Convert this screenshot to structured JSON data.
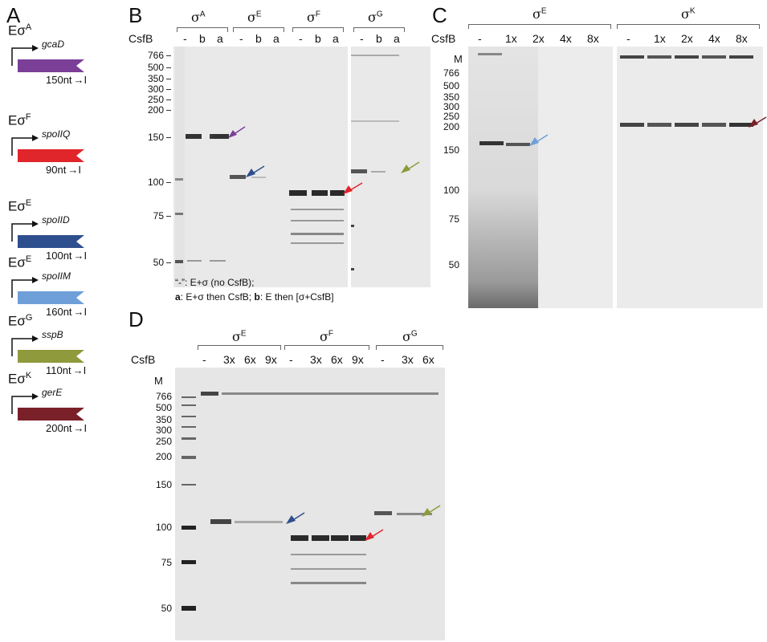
{
  "panels": {
    "A": "A",
    "B": "B",
    "C": "C",
    "D": "D"
  },
  "panelA": {
    "constructs": [
      {
        "enzyme": "Eσ",
        "sigma": "A",
        "gene": "gcaD",
        "length": "150nt",
        "color": "#7b3f98"
      },
      {
        "enzyme": "Eσ",
        "sigma": "F",
        "gene": "spoIIQ",
        "length": "90nt",
        "color": "#e0252b"
      },
      {
        "enzyme": "Eσ",
        "sigma": "E",
        "gene": "spoIID",
        "length": "100nt",
        "color": "#2e4f8d"
      },
      {
        "enzyme": "Eσ",
        "sigma": "E",
        "gene": "spoIIM",
        "length": "160nt",
        "color": "#6f9fd8"
      },
      {
        "enzyme": "Eσ",
        "sigma": "G",
        "gene": "sspB",
        "length": "110nt",
        "color": "#8e9a3b"
      },
      {
        "enzyme": "Eσ",
        "sigma": "K",
        "gene": "gerE",
        "length": "200nt",
        "color": "#7a2028"
      }
    ],
    "terminator": "→I"
  },
  "panelB": {
    "csfb_label": "CsfB",
    "groups": [
      {
        "sigma": "σ",
        "sup": "A",
        "lanes": [
          "-",
          "b",
          "a"
        ]
      },
      {
        "sigma": "σ",
        "sup": "E",
        "lanes": [
          "-",
          "b",
          "a"
        ]
      },
      {
        "sigma": "σ",
        "sup": "F",
        "lanes": [
          "-",
          "b",
          "a"
        ]
      },
      {
        "sigma": "σ",
        "sup": "G",
        "lanes": [
          "-",
          "b",
          "a"
        ]
      }
    ],
    "markers": [
      "766",
      "500",
      "350",
      "300",
      "250",
      "200",
      "150",
      "100",
      "75",
      "50"
    ],
    "note1": "“-”: E+σ (no CsfB);",
    "note2_a": "a",
    "note2_rest": ": E+σ then CsfB; ",
    "note2_b": "b",
    "note2_end": ": E then [σ+CsfB]"
  },
  "panelC": {
    "csfb_label": "CsfB",
    "groups": [
      {
        "sigma": "σ",
        "sup": "E",
        "lanes": [
          "-",
          "1x",
          "2x",
          "4x",
          "8x"
        ]
      },
      {
        "sigma": "σ",
        "sup": "K",
        "lanes": [
          "-",
          "1x",
          "2x",
          "4x",
          "8x"
        ]
      }
    ],
    "m_label": "M",
    "markers": [
      "766",
      "500",
      "350",
      "300",
      "250",
      "200",
      "150",
      "100",
      "75",
      "50"
    ]
  },
  "panelD": {
    "csfb_label": "CsfB",
    "groups": [
      {
        "sigma": "σ",
        "sup": "E",
        "lanes": [
          "-",
          "3x",
          "6x",
          "9x"
        ]
      },
      {
        "sigma": "σ",
        "sup": "F",
        "lanes": [
          "-",
          "3x",
          "6x",
          "9x"
        ]
      },
      {
        "sigma": "σ",
        "sup": "G",
        "lanes": [
          "-",
          "3x",
          "6x"
        ]
      }
    ],
    "m_label": "M",
    "markers": [
      "766",
      "500",
      "350",
      "300",
      "250",
      "200",
      "150",
      "100",
      "75",
      "50"
    ]
  },
  "arrow_colors": {
    "purple": "#7b3f98",
    "blue": "#2e4f8d",
    "red": "#e0252b",
    "olive": "#8e9a3b",
    "lightblue": "#6f9fd8",
    "maroon": "#7a2028"
  }
}
